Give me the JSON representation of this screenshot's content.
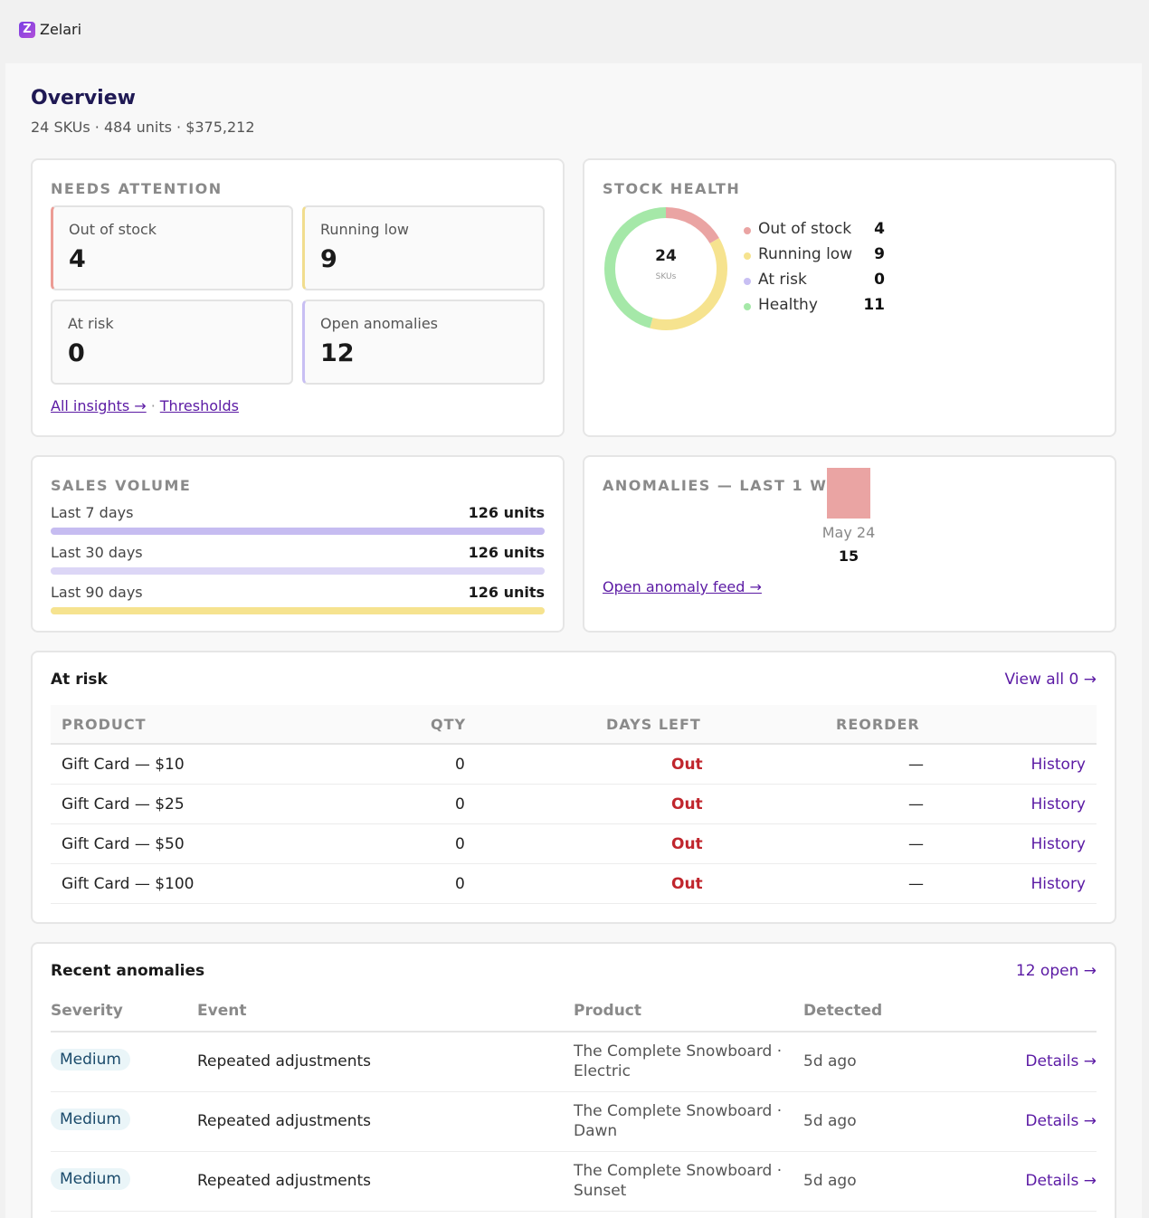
{
  "brand": {
    "logo_letter": "Z",
    "name": "Zelari"
  },
  "page": {
    "title": "Overview",
    "subtitle": "24 SKUs · 484 units · $375,212"
  },
  "needs_attention": {
    "heading": "NEEDS ATTENTION",
    "tiles": [
      {
        "label": "Out of stock",
        "value": "4",
        "accent": "#ec9c95"
      },
      {
        "label": "Running low",
        "value": "9",
        "accent": "#f1dd8e"
      },
      {
        "label": "At risk",
        "value": "0",
        "accent": "#e3e3e3"
      },
      {
        "label": "Open anomalies",
        "value": "12",
        "accent": "#c8bff3"
      }
    ],
    "link_insights": "All insights →",
    "link_sep": "·",
    "link_thresholds": "Thresholds"
  },
  "stock_health": {
    "heading": "STOCK HEALTH",
    "total": "24",
    "total_label": "SKUs",
    "legend": [
      {
        "label": "Out of stock",
        "value": "4",
        "color": "#eaa4a3"
      },
      {
        "label": "Running low",
        "value": "9",
        "color": "#f6e38f"
      },
      {
        "label": "At risk",
        "value": "0",
        "color": "#c8bff3"
      },
      {
        "label": "Healthy",
        "value": "11",
        "color": "#a5e8a8"
      }
    ]
  },
  "sales_volume": {
    "heading": "SALES VOLUME",
    "rows": [
      {
        "label": "Last 7 days",
        "value": "126 units",
        "fill": 1.0,
        "color": "#c6bcf1"
      },
      {
        "label": "Last 30 days",
        "value": "126 units",
        "fill": 1.0,
        "color": "#dcd6f6"
      },
      {
        "label": "Last 90 days",
        "value": "126 units",
        "fill": 1.0,
        "color": "#f6e38f"
      }
    ]
  },
  "anomalies_chart": {
    "heading": "ANOMALIES — LAST 1 WI",
    "link": "Open anomaly feed →",
    "chart_data": {
      "type": "bar",
      "categories": [
        "May 24"
      ],
      "values": [
        15
      ],
      "data_labels": [
        "15"
      ],
      "color": "#eaa4a3"
    }
  },
  "at_risk": {
    "title": "At risk",
    "view_all": "View all 0 →",
    "columns": [
      "PRODUCT",
      "QTY",
      "DAYS LEFT",
      "REORDER"
    ],
    "rows": [
      {
        "product": "Gift Card — $10",
        "qty": "0",
        "days_left": "Out",
        "reorder": "—",
        "action": "History"
      },
      {
        "product": "Gift Card — $25",
        "qty": "0",
        "days_left": "Out",
        "reorder": "—",
        "action": "History"
      },
      {
        "product": "Gift Card — $50",
        "qty": "0",
        "days_left": "Out",
        "reorder": "—",
        "action": "History"
      },
      {
        "product": "Gift Card — $100",
        "qty": "0",
        "days_left": "Out",
        "reorder": "—",
        "action": "History"
      }
    ]
  },
  "recent_anomalies": {
    "title": "Recent anomalies",
    "open_link": "12 open →",
    "columns": [
      "Severity",
      "Event",
      "Product",
      "Detected"
    ],
    "rows": [
      {
        "severity": "Medium",
        "event": "Repeated adjustments",
        "product": "The Complete Snowboard · Electric",
        "detected": "5d ago",
        "action": "Details →"
      },
      {
        "severity": "Medium",
        "event": "Repeated adjustments",
        "product": "The Complete Snowboard · Dawn",
        "detected": "5d ago",
        "action": "Details →"
      },
      {
        "severity": "Medium",
        "event": "Repeated adjustments",
        "product": "The Complete Snowboard · Sunset",
        "detected": "5d ago",
        "action": "Details →"
      }
    ]
  }
}
